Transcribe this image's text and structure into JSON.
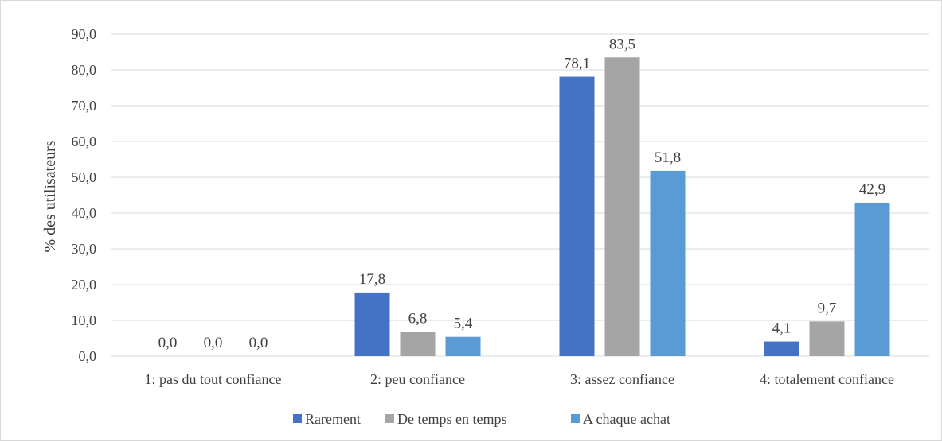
{
  "chart_data": {
    "type": "bar",
    "title": "",
    "xlabel": "",
    "ylabel": "% des utilisateurs",
    "ylim": [
      0,
      90
    ],
    "yticks": [
      "0,0",
      "10,0",
      "20,0",
      "30,0",
      "40,0",
      "50,0",
      "60,0",
      "70,0",
      "80,0",
      "90,0"
    ],
    "grid": true,
    "legend_position": "bottom",
    "categories": [
      "1: pas du tout confiance",
      "2: peu confiance",
      "3: assez confiance",
      "4: totalement confiance"
    ],
    "series": [
      {
        "name": "Rarement",
        "color": "#4472c4",
        "values": [
          0.0,
          17.8,
          78.1,
          4.1
        ],
        "labels": [
          "0,0",
          "17,8",
          "78,1",
          "4,1"
        ]
      },
      {
        "name": "De temps en temps",
        "color": "#a5a5a5",
        "values": [
          0.0,
          6.8,
          83.5,
          9.7
        ],
        "labels": [
          "0,0",
          "6,8",
          "83,5",
          "9,7"
        ]
      },
      {
        "name": "A chaque achat",
        "color": "#5b9bd5",
        "values": [
          0.0,
          5.4,
          51.8,
          42.9
        ],
        "labels": [
          "0,0",
          "5,4",
          "51,8",
          "42,9"
        ]
      }
    ]
  }
}
